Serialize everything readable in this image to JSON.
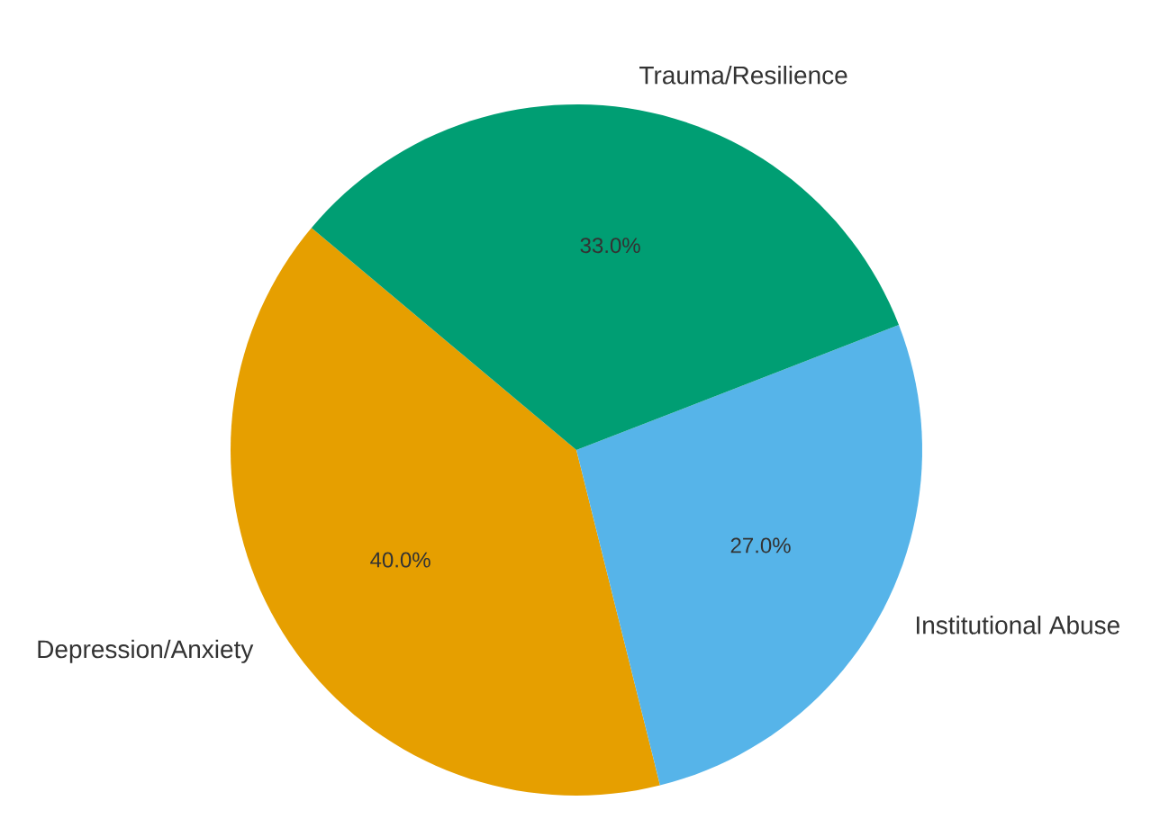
{
  "chart_data": {
    "type": "pie",
    "categories": [
      "Depression/Anxiety",
      "Institutional Abuse",
      "Trauma/Resilience"
    ],
    "values": [
      40,
      27,
      33
    ],
    "colors": [
      "#e69f00",
      "#56b4e9",
      "#009e73"
    ],
    "value_labels": [
      "40.0%",
      "27.0%",
      "33.0%"
    ]
  }
}
